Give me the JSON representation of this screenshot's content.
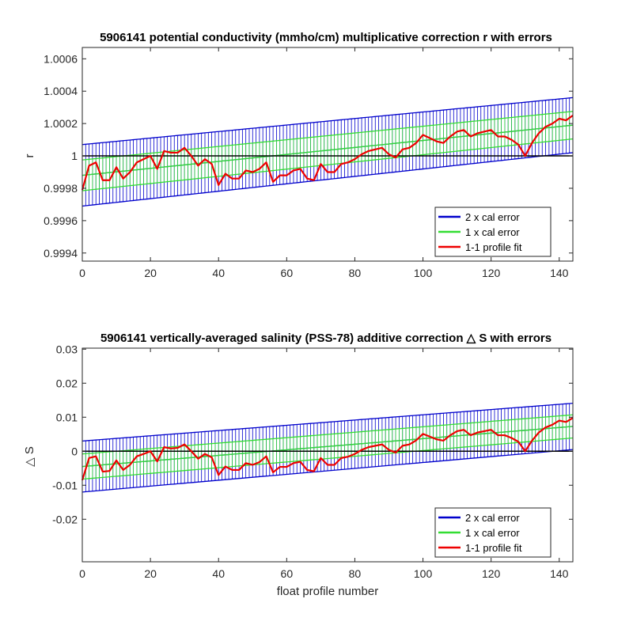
{
  "chart_data": [
    {
      "type": "line",
      "title": "5906141 potential conductivity (mmho/cm) multiplicative correction r with errors",
      "xlabel": "",
      "ylabel": "r",
      "xlim": [
        0,
        144
      ],
      "ylim": [
        0.99935,
        1.00067
      ],
      "xticks": [
        0,
        20,
        40,
        60,
        80,
        100,
        120,
        140
      ],
      "xtick_labels": [
        "0",
        "20",
        "40",
        "60",
        "80",
        "100",
        "120",
        "140"
      ],
      "yticks": [
        0.9994,
        0.9996,
        0.9998,
        1.0,
        1.0002,
        1.0004,
        1.0006
      ],
      "ytick_labels": [
        "0.9994",
        "0.9996",
        "0.9998",
        "1",
        "1.0002",
        "1.0004",
        "1.0006"
      ],
      "reference_line": 1.0,
      "legend_position": "bottom-right",
      "series": [
        {
          "name": "2 x cal error",
          "color": "#0000cc",
          "kind": "errorbar",
          "center_start": 0.99988,
          "center_end": 1.00019,
          "half_width_start": 0.00019,
          "half_width_end": 0.00017
        },
        {
          "name": "1 x cal error",
          "color": "#33dd33",
          "kind": "errorbar",
          "center_start": 0.99988,
          "center_end": 1.00019,
          "half_width_start": 9.5e-05,
          "half_width_end": 8.5e-05
        },
        {
          "name": "1-1 profile fit",
          "color": "#ee0000",
          "kind": "line",
          "x": [
            0,
            2,
            4,
            6,
            8,
            10,
            12,
            14,
            16,
            18,
            20,
            22,
            24,
            26,
            28,
            30,
            32,
            34,
            36,
            38,
            40,
            42,
            44,
            46,
            48,
            50,
            52,
            54,
            56,
            58,
            60,
            62,
            64,
            66,
            68,
            70,
            72,
            74,
            76,
            78,
            80,
            82,
            84,
            86,
            88,
            90,
            92,
            94,
            96,
            98,
            100,
            102,
            104,
            106,
            108,
            110,
            112,
            114,
            116,
            118,
            120,
            122,
            124,
            126,
            128,
            130,
            132,
            134,
            136,
            138,
            140,
            142,
            144
          ],
          "y": [
            0.99979,
            0.99994,
            0.99996,
            0.99985,
            0.99985,
            0.99993,
            0.99986,
            0.9999,
            0.99996,
            0.99998,
            1.0,
            0.99992,
            1.00003,
            1.00002,
            1.00002,
            1.00005,
            1.0,
            0.99994,
            0.99998,
            0.99995,
            0.99982,
            0.99989,
            0.99986,
            0.99986,
            0.99991,
            0.9999,
            0.99992,
            0.99996,
            0.99984,
            0.99988,
            0.99988,
            0.99991,
            0.99992,
            0.99986,
            0.99985,
            0.99995,
            0.9999,
            0.9999,
            0.99995,
            0.99996,
            0.99998,
            1.00001,
            1.00003,
            1.00004,
            1.00005,
            1.00001,
            0.99999,
            1.00004,
            1.00005,
            1.00008,
            1.00013,
            1.00011,
            1.00009,
            1.00008,
            1.00012,
            1.00015,
            1.00016,
            1.00012,
            1.00014,
            1.00015,
            1.00016,
            1.00012,
            1.00012,
            1.0001,
            1.00007,
            1.0,
            1.00008,
            1.00014,
            1.00018,
            1.0002,
            1.00023,
            1.00022,
            1.00025
          ]
        }
      ]
    },
    {
      "type": "line",
      "title": "5906141 vertically-averaged salinity (PSS-78) additive correction △ S with errors",
      "xlabel": "float profile number",
      "ylabel": "△ S",
      "xlim": [
        0,
        144
      ],
      "ylim": [
        -0.0325,
        0.0303
      ],
      "xticks": [
        0,
        20,
        40,
        60,
        80,
        100,
        120,
        140
      ],
      "xtick_labels": [
        "0",
        "20",
        "40",
        "60",
        "80",
        "100",
        "120",
        "140"
      ],
      "yticks": [
        -0.02,
        -0.01,
        0,
        0.01,
        0.02,
        0.03
      ],
      "ytick_labels": [
        "-0.02",
        "-0.01",
        "0",
        "0.01",
        "0.02",
        "0.03"
      ],
      "reference_line": 0,
      "legend_position": "bottom-right",
      "series": [
        {
          "name": "2 x cal error",
          "color": "#0000cc",
          "kind": "errorbar",
          "center_start": -0.0045,
          "center_end": 0.0073,
          "half_width_start": 0.0075,
          "half_width_end": 0.0068
        },
        {
          "name": "1 x cal error",
          "color": "#33dd33",
          "kind": "errorbar",
          "center_start": -0.0045,
          "center_end": 0.0073,
          "half_width_start": 0.0037,
          "half_width_end": 0.0034
        },
        {
          "name": "1-1 profile fit",
          "color": "#ee0000",
          "kind": "line",
          "x": [
            0,
            2,
            4,
            6,
            8,
            10,
            12,
            14,
            16,
            18,
            20,
            22,
            24,
            26,
            28,
            30,
            32,
            34,
            36,
            38,
            40,
            42,
            44,
            46,
            48,
            50,
            52,
            54,
            56,
            58,
            60,
            62,
            64,
            66,
            68,
            70,
            72,
            74,
            76,
            78,
            80,
            82,
            84,
            86,
            88,
            90,
            92,
            94,
            96,
            98,
            100,
            102,
            104,
            106,
            108,
            110,
            112,
            114,
            116,
            118,
            120,
            122,
            124,
            126,
            128,
            130,
            132,
            134,
            136,
            138,
            140,
            142,
            144
          ],
          "y": [
            -0.0085,
            -0.002,
            -0.0015,
            -0.006,
            -0.0058,
            -0.0027,
            -0.0055,
            -0.004,
            -0.0015,
            -0.0008,
            0.0,
            -0.003,
            0.0012,
            0.0008,
            0.001,
            0.002,
            0.0,
            -0.0022,
            -0.0008,
            -0.0018,
            -0.007,
            -0.0045,
            -0.0055,
            -0.0055,
            -0.0035,
            -0.004,
            -0.0032,
            -0.0015,
            -0.0062,
            -0.0046,
            -0.0046,
            -0.0035,
            -0.0031,
            -0.0055,
            -0.0059,
            -0.002,
            -0.004,
            -0.004,
            -0.002,
            -0.0016,
            -0.0008,
            0.0004,
            0.0012,
            0.0016,
            0.002,
            0.0004,
            -0.0004,
            0.0016,
            0.002,
            0.0032,
            0.0051,
            0.0043,
            0.0035,
            0.0031,
            0.0047,
            0.0059,
            0.0063,
            0.0047,
            0.0055,
            0.0059,
            0.0063,
            0.0047,
            0.0047,
            0.0039,
            0.0028,
            0.0,
            0.0031,
            0.0055,
            0.007,
            0.0078,
            0.009,
            0.0086,
            0.0098
          ]
        }
      ]
    }
  ]
}
